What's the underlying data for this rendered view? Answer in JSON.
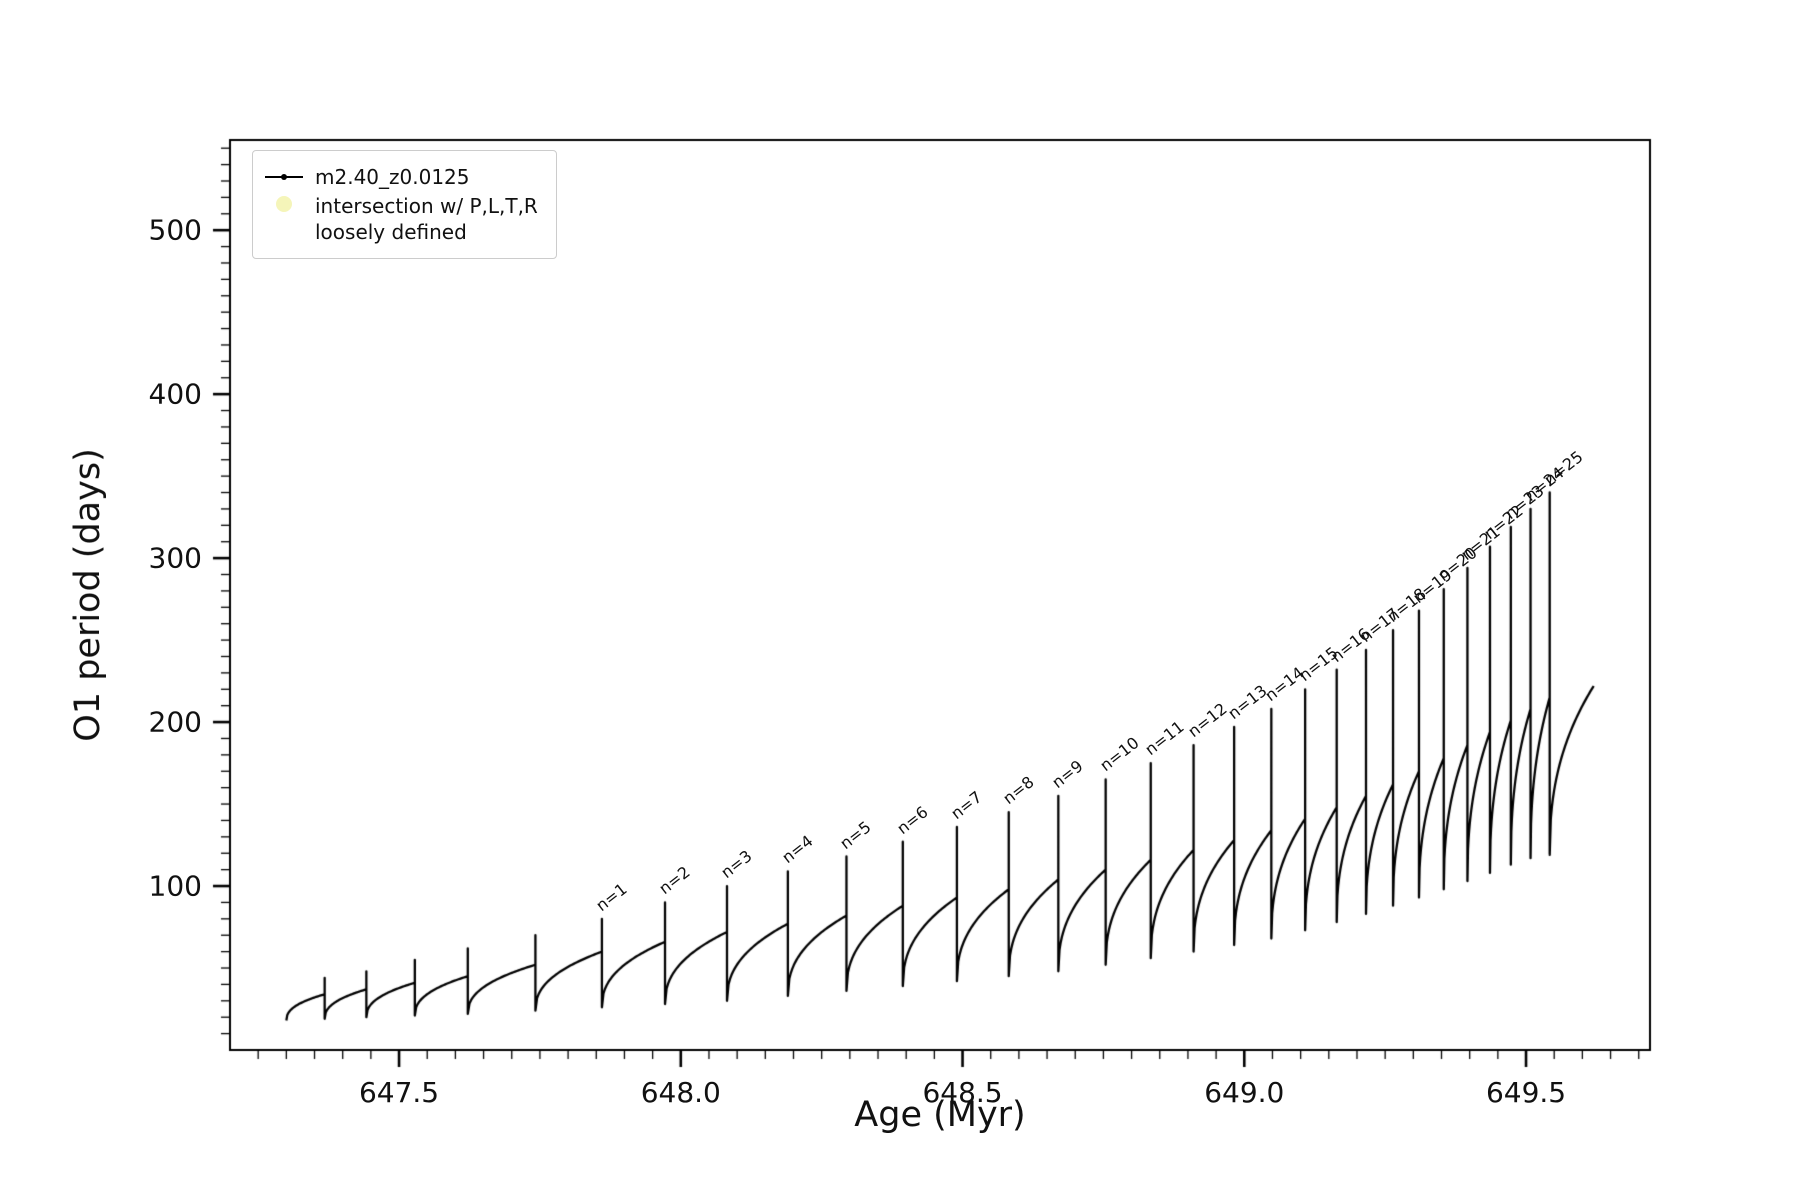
{
  "figure": {
    "background": "#ffffff"
  },
  "legend": {
    "series1_label": "m2.40_z0.0125",
    "series1_color": "#000000",
    "series2_label_line1": "intersection w/ P,L,T,R",
    "series2_label_line2": "loosely defined",
    "series2_marker_color": "#f2f2a8"
  },
  "chart_data": {
    "type": "line",
    "title": "",
    "xlabel": "Age (Myr)",
    "ylabel": "O1 period (days)",
    "series_name": "m2.40_z0.0125",
    "line_color": "#000000",
    "xlim": [
      647.2,
      649.72
    ],
    "ylim": [
      0,
      555
    ],
    "xticks": [
      647.5,
      648.0,
      648.5,
      649.0,
      649.5
    ],
    "xtick_labels": [
      "647.5",
      "648.0",
      "648.5",
      "649.0",
      "649.5"
    ],
    "yticks": [
      100,
      200,
      300,
      400,
      500
    ],
    "ytick_labels": [
      "100",
      "200",
      "300",
      "400",
      "500"
    ],
    "x_minor_step": 0.05,
    "y_minor_step": 10,
    "grid": false,
    "legend_position": "upper-left",
    "teeth_format": [
      "x_start",
      "x_end",
      "y_start",
      "y_end",
      "spike_top",
      "label"
    ],
    "teeth": [
      [
        647.3,
        647.368,
        18,
        34,
        44,
        null
      ],
      [
        647.368,
        647.442,
        19,
        37,
        48,
        null
      ],
      [
        647.442,
        647.528,
        20,
        41,
        55,
        null
      ],
      [
        647.528,
        647.622,
        21,
        45,
        62,
        null
      ],
      [
        647.622,
        647.742,
        22,
        52,
        70,
        null
      ],
      [
        647.742,
        647.86,
        24,
        60,
        80,
        "n=1"
      ],
      [
        647.86,
        647.972,
        26,
        66,
        90,
        "n=2"
      ],
      [
        647.972,
        648.082,
        28,
        72,
        100,
        "n=3"
      ],
      [
        648.082,
        648.19,
        30,
        77,
        109,
        "n=4"
      ],
      [
        648.19,
        648.294,
        33,
        82,
        118,
        "n=5"
      ],
      [
        648.294,
        648.394,
        36,
        88,
        127,
        "n=6"
      ],
      [
        648.394,
        648.49,
        39,
        93,
        136,
        "n=7"
      ],
      [
        648.49,
        648.582,
        42,
        98,
        145,
        "n=8"
      ],
      [
        648.582,
        648.67,
        45,
        104,
        155,
        "n=9"
      ],
      [
        648.67,
        648.754,
        48,
        110,
        165,
        "n=10"
      ],
      [
        648.754,
        648.834,
        52,
        116,
        175,
        "n=11"
      ],
      [
        648.834,
        648.91,
        56,
        122,
        186,
        "n=12"
      ],
      [
        648.91,
        648.982,
        60,
        128,
        197,
        "n=13"
      ],
      [
        648.982,
        649.048,
        64,
        134,
        208,
        "n=14"
      ],
      [
        649.048,
        649.108,
        68,
        141,
        220,
        "n=15"
      ],
      [
        649.108,
        649.164,
        73,
        148,
        232,
        "n=16"
      ],
      [
        649.164,
        649.216,
        78,
        155,
        244,
        "n=17"
      ],
      [
        649.216,
        649.264,
        83,
        162,
        256,
        "n=18"
      ],
      [
        649.264,
        649.31,
        88,
        170,
        268,
        "n=19"
      ],
      [
        649.31,
        649.354,
        93,
        178,
        281,
        "n=20"
      ],
      [
        649.354,
        649.396,
        98,
        186,
        294,
        "n=21"
      ],
      [
        649.396,
        649.436,
        103,
        194,
        307,
        "n=22"
      ],
      [
        649.436,
        649.473,
        108,
        201,
        319,
        "n=23"
      ],
      [
        649.473,
        649.508,
        113,
        208,
        330,
        "n=24"
      ],
      [
        649.508,
        649.542,
        117,
        215,
        340,
        "n=25"
      ],
      [
        649.542,
        649.62,
        119,
        222,
        null,
        null
      ]
    ]
  }
}
